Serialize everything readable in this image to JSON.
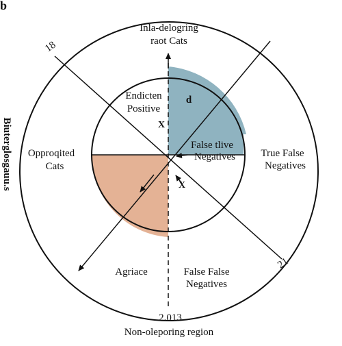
{
  "corner_label": "b",
  "top_label": [
    "Inla-delogring",
    "raot Cats"
  ],
  "inner_top_left": [
    "Endicten",
    "Positive"
  ],
  "marker_d": "d",
  "marker_x_upper": "X",
  "marker_x_lower": "X",
  "inner_false_tlive": [
    "False tlive",
    "Negatives"
  ],
  "left_label": [
    "Opproqited",
    "Cats"
  ],
  "right_label": [
    "True False",
    "Negatives"
  ],
  "bottom_left_label": "Agriace",
  "bottom_right_label": [
    "False False",
    "Negatives"
  ],
  "number_18": "18",
  "number_21": "21",
  "bottom_number": "2.013",
  "bottom_title": "Non-oleporing region",
  "side_axis_label": "Biuterglosgauu.s",
  "colors": {
    "blue_quadrant": "#8fb3c0",
    "orange_quadrant": "#e4b295",
    "line": "#111111"
  }
}
